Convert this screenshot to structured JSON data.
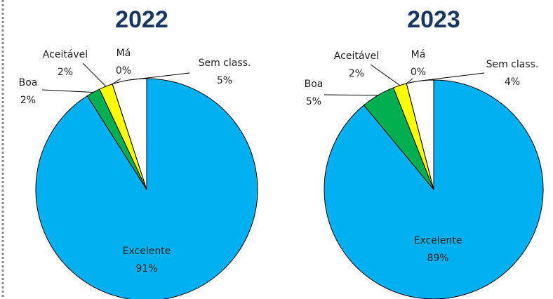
{
  "chart_data": [
    {
      "type": "pie",
      "title": "2022",
      "categories": [
        "Excelente",
        "Boa",
        "Aceitável",
        "Má",
        "Sem class."
      ],
      "values": [
        91,
        2,
        2,
        0,
        5
      ],
      "value_labels": [
        "91%",
        "2%",
        "2%",
        "0%",
        "5%"
      ],
      "colors": [
        "#00b0f0",
        "#00b050",
        "#ffff00",
        "#ffffff",
        "#ffffff"
      ]
    },
    {
      "type": "pie",
      "title": "2023",
      "categories": [
        "Excelente",
        "Boa",
        "Aceitável",
        "Má",
        "Sem class."
      ],
      "values": [
        89,
        5,
        2,
        0,
        4
      ],
      "value_labels": [
        "89%",
        "5%",
        "2%",
        "0%",
        "4%"
      ],
      "colors": [
        "#00b0f0",
        "#00b050",
        "#ffff00",
        "#ffffff",
        "#ffffff"
      ]
    }
  ]
}
